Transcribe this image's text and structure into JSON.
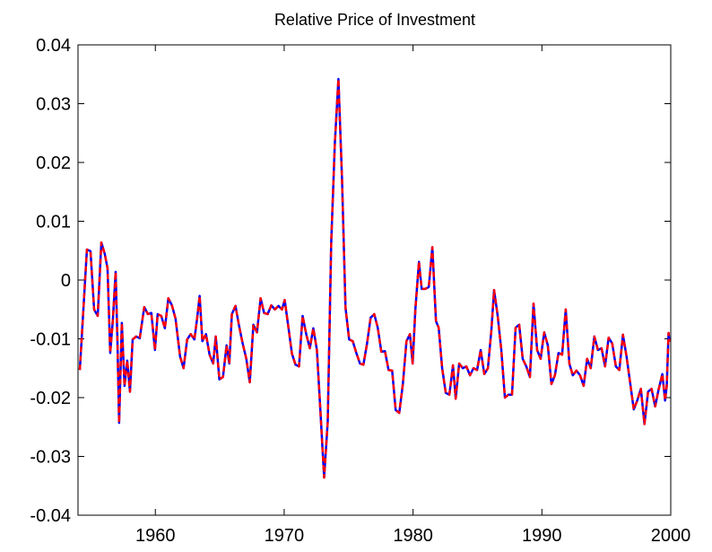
{
  "chart_data": {
    "type": "line",
    "title": "Relative Price of Investment",
    "x": [
      1954.14,
      1954.69,
      1954.97,
      1955.25,
      1955.53,
      1955.81,
      1956.08,
      1956.29,
      1956.5,
      1956.71,
      1956.92,
      1957.06,
      1957.19,
      1957.4,
      1957.61,
      1957.82,
      1958.03,
      1958.24,
      1958.51,
      1958.79,
      1959.14,
      1959.42,
      1959.69,
      1959.97,
      1960.18,
      1960.46,
      1960.74,
      1961.01,
      1961.29,
      1961.57,
      1961.92,
      1962.19,
      1962.47,
      1962.75,
      1963.03,
      1963.24,
      1963.44,
      1963.65,
      1963.93,
      1964.21,
      1964.49,
      1964.69,
      1964.97,
      1965.25,
      1965.53,
      1965.74,
      1965.94,
      1966.22,
      1966.5,
      1966.78,
      1967.06,
      1967.33,
      1967.61,
      1967.89,
      1968.17,
      1968.44,
      1968.72,
      1969.0,
      1969.28,
      1969.56,
      1969.83,
      1970.04,
      1970.32,
      1970.6,
      1970.88,
      1971.15,
      1971.43,
      1971.71,
      1971.99,
      1972.26,
      1972.54,
      1972.82,
      1973.1,
      1973.38,
      1973.65,
      1973.93,
      1974.21,
      1974.49,
      1974.76,
      1975.04,
      1975.32,
      1975.6,
      1975.88,
      1976.15,
      1976.43,
      1976.71,
      1976.99,
      1977.26,
      1977.54,
      1977.82,
      1978.1,
      1978.38,
      1978.65,
      1978.93,
      1979.21,
      1979.49,
      1979.76,
      1979.97,
      1980.18,
      1980.46,
      1980.67,
      1980.94,
      1981.22,
      1981.5,
      1981.78,
      1981.99,
      1982.26,
      1982.54,
      1982.82,
      1983.1,
      1983.31,
      1983.58,
      1983.86,
      1984.14,
      1984.42,
      1984.69,
      1984.97,
      1985.25,
      1985.53,
      1985.81,
      1986.08,
      1986.29,
      1986.57,
      1986.85,
      1987.13,
      1987.4,
      1987.68,
      1987.96,
      1988.24,
      1988.51,
      1988.79,
      1989.07,
      1989.35,
      1989.63,
      1989.9,
      1990.18,
      1990.46,
      1990.74,
      1991.01,
      1991.29,
      1991.57,
      1991.85,
      1992.13,
      1992.4,
      1992.68,
      1992.96,
      1993.24,
      1993.51,
      1993.79,
      1994.07,
      1994.35,
      1994.63,
      1994.9,
      1995.18,
      1995.46,
      1995.74,
      1996.01,
      1996.29,
      1996.57,
      1996.85,
      1997.13,
      1997.4,
      1997.68,
      1997.96,
      1998.24,
      1998.51,
      1998.79,
      1999.07,
      1999.35,
      1999.56,
      1999.69,
      1999.83,
      1999.9
    ],
    "series": [
      {
        "color": "#0000ff",
        "linestyle": "solid",
        "values": [
          -0.0153,
          0.0052,
          0.0049,
          -0.005,
          -0.0061,
          0.0064,
          0.0044,
          0.002,
          -0.0124,
          -0.0066,
          0.0014,
          -0.0104,
          -0.0243,
          -0.0073,
          -0.018,
          -0.0137,
          -0.019,
          -0.0101,
          -0.0096,
          -0.0099,
          -0.0046,
          -0.0058,
          -0.0056,
          -0.0119,
          -0.0058,
          -0.0061,
          -0.0082,
          -0.0031,
          -0.0043,
          -0.0066,
          -0.013,
          -0.015,
          -0.0101,
          -0.0092,
          -0.0101,
          -0.0066,
          -0.0027,
          -0.0104,
          -0.0092,
          -0.0127,
          -0.0142,
          -0.0096,
          -0.0169,
          -0.0165,
          -0.0111,
          -0.0142,
          -0.0058,
          -0.0044,
          -0.0078,
          -0.0108,
          -0.0134,
          -0.0174,
          -0.0076,
          -0.0089,
          -0.0031,
          -0.0056,
          -0.0058,
          -0.0043,
          -0.005,
          -0.0044,
          -0.005,
          -0.0034,
          -0.0079,
          -0.0125,
          -0.0144,
          -0.0147,
          -0.0061,
          -0.0092,
          -0.0116,
          -0.0082,
          -0.0119,
          -0.0226,
          -0.0336,
          -0.0241,
          0.0064,
          0.0232,
          0.0342,
          0.0171,
          -0.0047,
          -0.0101,
          -0.0104,
          -0.0124,
          -0.0142,
          -0.0144,
          -0.0108,
          -0.0064,
          -0.0058,
          -0.0081,
          -0.0122,
          -0.0121,
          -0.0153,
          -0.0154,
          -0.0221,
          -0.0226,
          -0.0177,
          -0.0104,
          -0.0092,
          -0.0142,
          -0.005,
          0.0031,
          -0.0015,
          -0.0015,
          -0.0012,
          0.0056,
          -0.007,
          -0.0081,
          -0.015,
          -0.0192,
          -0.0195,
          -0.0145,
          -0.0202,
          -0.0142,
          -0.015,
          -0.0147,
          -0.0162,
          -0.015,
          -0.0153,
          -0.0119,
          -0.016,
          -0.015,
          -0.0085,
          -0.0017,
          -0.0061,
          -0.0119,
          -0.02,
          -0.0195,
          -0.0195,
          -0.0081,
          -0.0076,
          -0.0134,
          -0.0147,
          -0.0165,
          -0.004,
          -0.0119,
          -0.0134,
          -0.0089,
          -0.0111,
          -0.0177,
          -0.0162,
          -0.0124,
          -0.0127,
          -0.005,
          -0.0142,
          -0.0162,
          -0.0154,
          -0.0162,
          -0.018,
          -0.0134,
          -0.015,
          -0.0096,
          -0.0119,
          -0.0116,
          -0.0147,
          -0.0098,
          -0.0108,
          -0.0147,
          -0.0153,
          -0.0093,
          -0.013,
          -0.0175,
          -0.022,
          -0.0205,
          -0.0185,
          -0.0245,
          -0.019,
          -0.0185,
          -0.0215,
          -0.0185,
          -0.016,
          -0.0205,
          -0.018,
          -0.009,
          -0.0105
        ]
      },
      {
        "color": "#ff0000",
        "linestyle": "dashed",
        "values": [
          -0.0153,
          0.0052,
          0.0049,
          -0.005,
          -0.0061,
          0.0064,
          0.0044,
          0.002,
          -0.0124,
          -0.0066,
          0.0014,
          -0.0104,
          -0.0243,
          -0.0073,
          -0.018,
          -0.0137,
          -0.019,
          -0.0101,
          -0.0096,
          -0.0099,
          -0.0046,
          -0.0058,
          -0.0056,
          -0.0119,
          -0.0058,
          -0.0061,
          -0.0082,
          -0.0031,
          -0.0043,
          -0.0066,
          -0.013,
          -0.015,
          -0.0101,
          -0.0092,
          -0.0101,
          -0.0066,
          -0.0027,
          -0.0104,
          -0.0092,
          -0.0127,
          -0.0142,
          -0.0096,
          -0.0169,
          -0.0165,
          -0.0111,
          -0.0142,
          -0.0058,
          -0.0044,
          -0.0078,
          -0.0108,
          -0.0134,
          -0.0174,
          -0.0076,
          -0.0089,
          -0.0031,
          -0.0056,
          -0.0058,
          -0.0043,
          -0.005,
          -0.0044,
          -0.005,
          -0.0034,
          -0.0079,
          -0.0125,
          -0.0144,
          -0.0147,
          -0.0061,
          -0.0092,
          -0.0116,
          -0.0082,
          -0.0119,
          -0.0226,
          -0.0336,
          -0.0241,
          0.0064,
          0.0232,
          0.0342,
          0.0171,
          -0.0047,
          -0.0101,
          -0.0104,
          -0.0124,
          -0.0142,
          -0.0144,
          -0.0108,
          -0.0064,
          -0.0058,
          -0.0081,
          -0.0122,
          -0.0121,
          -0.0153,
          -0.0154,
          -0.0221,
          -0.0226,
          -0.0177,
          -0.0104,
          -0.0092,
          -0.0142,
          -0.005,
          0.0031,
          -0.0015,
          -0.0015,
          -0.0012,
          0.0056,
          -0.007,
          -0.0081,
          -0.015,
          -0.0192,
          -0.0195,
          -0.0145,
          -0.0202,
          -0.0142,
          -0.015,
          -0.0147,
          -0.0162,
          -0.015,
          -0.0153,
          -0.0119,
          -0.016,
          -0.015,
          -0.0085,
          -0.0017,
          -0.0061,
          -0.0119,
          -0.02,
          -0.0195,
          -0.0195,
          -0.0081,
          -0.0076,
          -0.0134,
          -0.0147,
          -0.0165,
          -0.004,
          -0.0119,
          -0.0134,
          -0.0089,
          -0.0111,
          -0.0177,
          -0.0162,
          -0.0124,
          -0.0127,
          -0.005,
          -0.0142,
          -0.0162,
          -0.0154,
          -0.0162,
          -0.018,
          -0.0134,
          -0.015,
          -0.0096,
          -0.0119,
          -0.0116,
          -0.0147,
          -0.0098,
          -0.0108,
          -0.0147,
          -0.0153,
          -0.0093,
          -0.013,
          -0.0175,
          -0.022,
          -0.0205,
          -0.0185,
          -0.0245,
          -0.019,
          -0.0185,
          -0.0215,
          -0.0185,
          -0.016,
          -0.0205,
          -0.018,
          -0.009,
          -0.0105
        ]
      }
    ],
    "xlim": [
      1954,
      2000
    ],
    "xticks": [
      1960,
      1970,
      1980,
      1990,
      2000
    ],
    "ylim": [
      -0.04,
      0.04
    ],
    "yticks": [
      -0.04,
      -0.03,
      -0.02,
      -0.01,
      0,
      0.01,
      0.02,
      0.03,
      0.04
    ],
    "grid": false
  }
}
